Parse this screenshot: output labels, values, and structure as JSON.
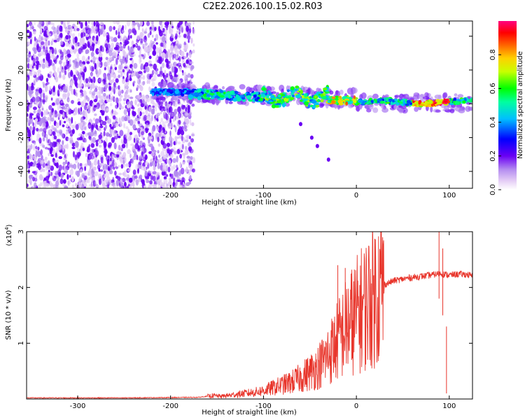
{
  "title": "C2E2.2026.100.15.02.R03",
  "chart_data": [
    {
      "type": "heatmap",
      "title": "C2E2.2026.100.15.02.R03",
      "xlabel": "Height of straight line (km)",
      "ylabel": "Frequency (Hz)",
      "xlim": [
        -355,
        125
      ],
      "ylim": [
        -50,
        49
      ],
      "xticks": [
        -300,
        -200,
        -100,
        0,
        100
      ],
      "yticks": [
        -40,
        -20,
        0,
        20,
        40
      ],
      "colorbar": {
        "label": "Normalized spectral amplitude",
        "range": [
          0,
          1
        ],
        "ticks": [
          0.0,
          0.2,
          0.4,
          0.6,
          0.8
        ],
        "tick_labels": [
          "0.0",
          "0.2",
          "0.4",
          "0.6",
          "0.8"
        ]
      },
      "features": [
        {
          "name": "noise",
          "x_range": [
            -355,
            -175
          ],
          "freq_range": [
            -50,
            49
          ],
          "amplitude": 0.05
        },
        {
          "name": "signal-band",
          "x_range": [
            -220,
            125
          ],
          "freq_center": [
            7,
            0.5
          ],
          "amplitude_range": [
            0.2,
            0.95
          ]
        },
        {
          "name": "descending-trail",
          "points": [
            [
              -60,
              -12
            ],
            [
              -48,
              -20
            ],
            [
              -42,
              -25
            ],
            [
              -30,
              -33
            ]
          ],
          "amplitude": 0.12
        }
      ]
    },
    {
      "type": "line",
      "xlabel": "Height of straight line (km)",
      "ylabel": "SNR (10 * v/v)",
      "y_scale_label": "(x10",
      "y_scale_exp": "4",
      "y_scale": 10000,
      "xlim": [
        -355,
        125
      ],
      "ylim": [
        0,
        3
      ],
      "xticks": [
        -300,
        -200,
        -100,
        0,
        100
      ],
      "yticks": [
        1,
        2,
        3
      ],
      "series": [
        {
          "name": "SNR",
          "color": "#e8352b",
          "x": [
            -355,
            -250,
            -170,
            -155,
            -145,
            -130,
            -110,
            -100,
            -90,
            -80,
            -70,
            -60,
            -50,
            -40,
            -30,
            -20,
            -10,
            0,
            10,
            20,
            30,
            40,
            50,
            60,
            70,
            80,
            90,
            100,
            110,
            120,
            125
          ],
          "y": [
            0.02,
            0.02,
            0.03,
            0.06,
            0.05,
            0.08,
            0.12,
            0.15,
            0.2,
            0.25,
            0.3,
            0.38,
            0.48,
            0.6,
            0.8,
            1.05,
            1.3,
            1.5,
            1.7,
            1.9,
            2.05,
            2.12,
            2.15,
            2.18,
            2.2,
            2.22,
            2.25,
            2.22,
            2.24,
            2.23,
            2.2
          ]
        }
      ],
      "noise_spikes": [
        {
          "x": -20,
          "y": 2.4
        },
        {
          "x": -12,
          "y": 2.35
        },
        {
          "x": -5,
          "y": 1.9
        },
        {
          "x": 89,
          "y": 3.0
        },
        {
          "x": 93,
          "y": 2.7
        },
        {
          "x": 97,
          "y": 1.3
        }
      ]
    }
  ]
}
